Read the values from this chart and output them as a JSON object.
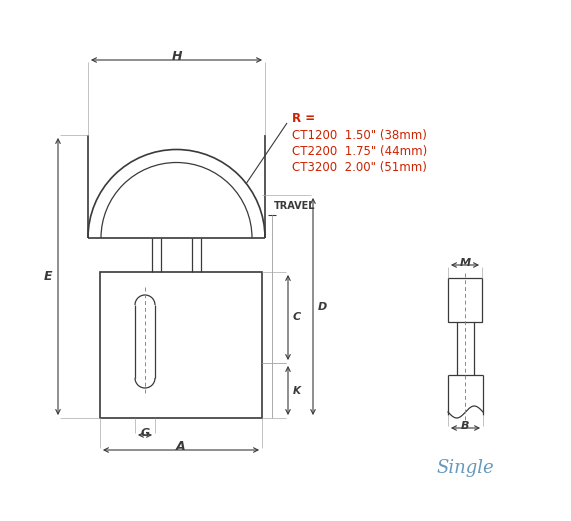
{
  "bg_color": "#ffffff",
  "line_color": "#3a3a3a",
  "dim_color": "#3a3a3a",
  "annotation_color": "#cc2200",
  "single_color": "#6699bb",
  "title_r": "R =",
  "ct1200_text": "CT1200  1.50\" (38mm)",
  "ct2200_text": "CT2200  1.75\" (44mm)",
  "ct3200_text": "CT3200  2.00\" (51mm)",
  "single_text": "Single",
  "travel_text": "TRAVEL",
  "figsize": [
    5.71,
    5.21
  ],
  "dpi": 100
}
